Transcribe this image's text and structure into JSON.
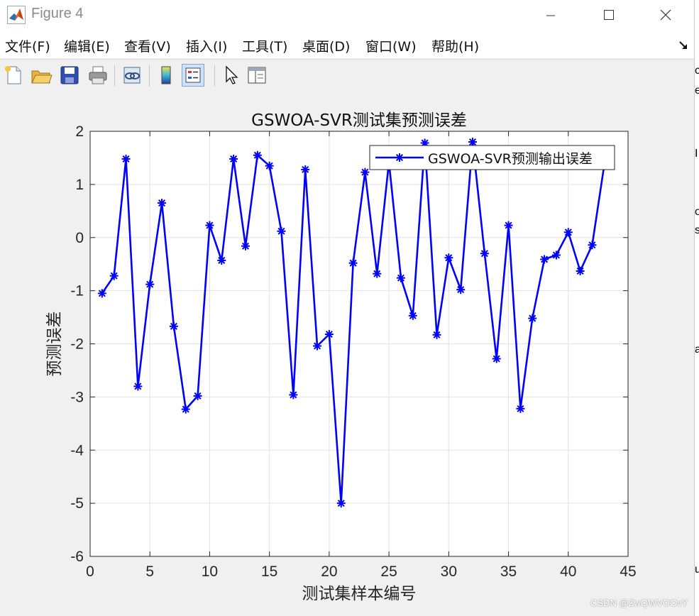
{
  "window": {
    "title": "Figure 4",
    "app_icon": "matlab-logo-icon",
    "controls": [
      "minimize-icon",
      "maximize-icon",
      "close-icon"
    ]
  },
  "menubar": {
    "items": [
      {
        "label": "文件(F)"
      },
      {
        "label": "编辑(E)"
      },
      {
        "label": "查看(V)"
      },
      {
        "label": "插入(I)"
      },
      {
        "label": "工具(T)"
      },
      {
        "label": "桌面(D)"
      },
      {
        "label": "窗口(W)"
      },
      {
        "label": "帮助(H)"
      }
    ],
    "dock_icon": "undock-arrow-icon"
  },
  "toolbar": {
    "buttons": [
      {
        "icon": "new-figure-icon"
      },
      {
        "icon": "open-file-icon"
      },
      {
        "icon": "save-icon"
      },
      {
        "icon": "print-icon"
      },
      {
        "icon": "link-plot-icon"
      },
      {
        "icon": "insert-colorbar-icon"
      },
      {
        "icon": "insert-legend-icon",
        "active": true
      },
      {
        "icon": "edit-plot-arrow-icon"
      },
      {
        "icon": "property-inspector-icon"
      }
    ]
  },
  "chart_data": {
    "type": "line",
    "title": "GSWOA-SVR测试集预测误差",
    "xlabel": "测试集样本编号",
    "ylabel": "预测误差",
    "xlim": [
      0,
      45
    ],
    "ylim": [
      -6,
      2
    ],
    "xticks": [
      0,
      5,
      10,
      15,
      20,
      25,
      30,
      35,
      40,
      45
    ],
    "yticks": [
      -6,
      -5,
      -4,
      -3,
      -2,
      -1,
      0,
      1,
      2
    ],
    "grid": true,
    "legend_position": "top-right",
    "marker": "asterisk",
    "series": [
      {
        "name": "GSWOA-SVR预测输出误差",
        "color": "#0000ff",
        "x": [
          1,
          2,
          3,
          4,
          5,
          6,
          7,
          8,
          9,
          10,
          11,
          12,
          13,
          14,
          15,
          16,
          17,
          18,
          19,
          20,
          21,
          22,
          23,
          24,
          25,
          26,
          27,
          28,
          29,
          30,
          31,
          32,
          33,
          34,
          35,
          36,
          37,
          38,
          39,
          40,
          41,
          42,
          43
        ],
        "y": [
          -1.05,
          -0.72,
          1.48,
          -2.8,
          -0.88,
          0.65,
          -1.67,
          -3.23,
          -2.98,
          0.23,
          -0.43,
          1.48,
          -0.16,
          1.55,
          1.35,
          0.12,
          -2.96,
          1.28,
          -2.04,
          -1.82,
          -5.0,
          -0.48,
          1.23,
          -0.68,
          1.42,
          -0.76,
          -1.47,
          1.78,
          -1.83,
          -0.38,
          -0.98,
          1.8,
          -0.3,
          -2.28,
          0.23,
          -3.22,
          -1.52,
          -0.41,
          -0.33,
          0.1,
          -0.63,
          -0.14,
          1.35
        ]
      }
    ]
  },
  "watermark": "CSDN @ZwQWVOOvY",
  "background_strip": {
    "chars": [
      {
        "text": "c"
      },
      {
        "text": "e"
      },
      {
        "text": "I"
      },
      {
        "text": "o"
      },
      {
        "text": "s"
      },
      {
        "text": "a"
      },
      {
        "text": "u"
      }
    ]
  }
}
